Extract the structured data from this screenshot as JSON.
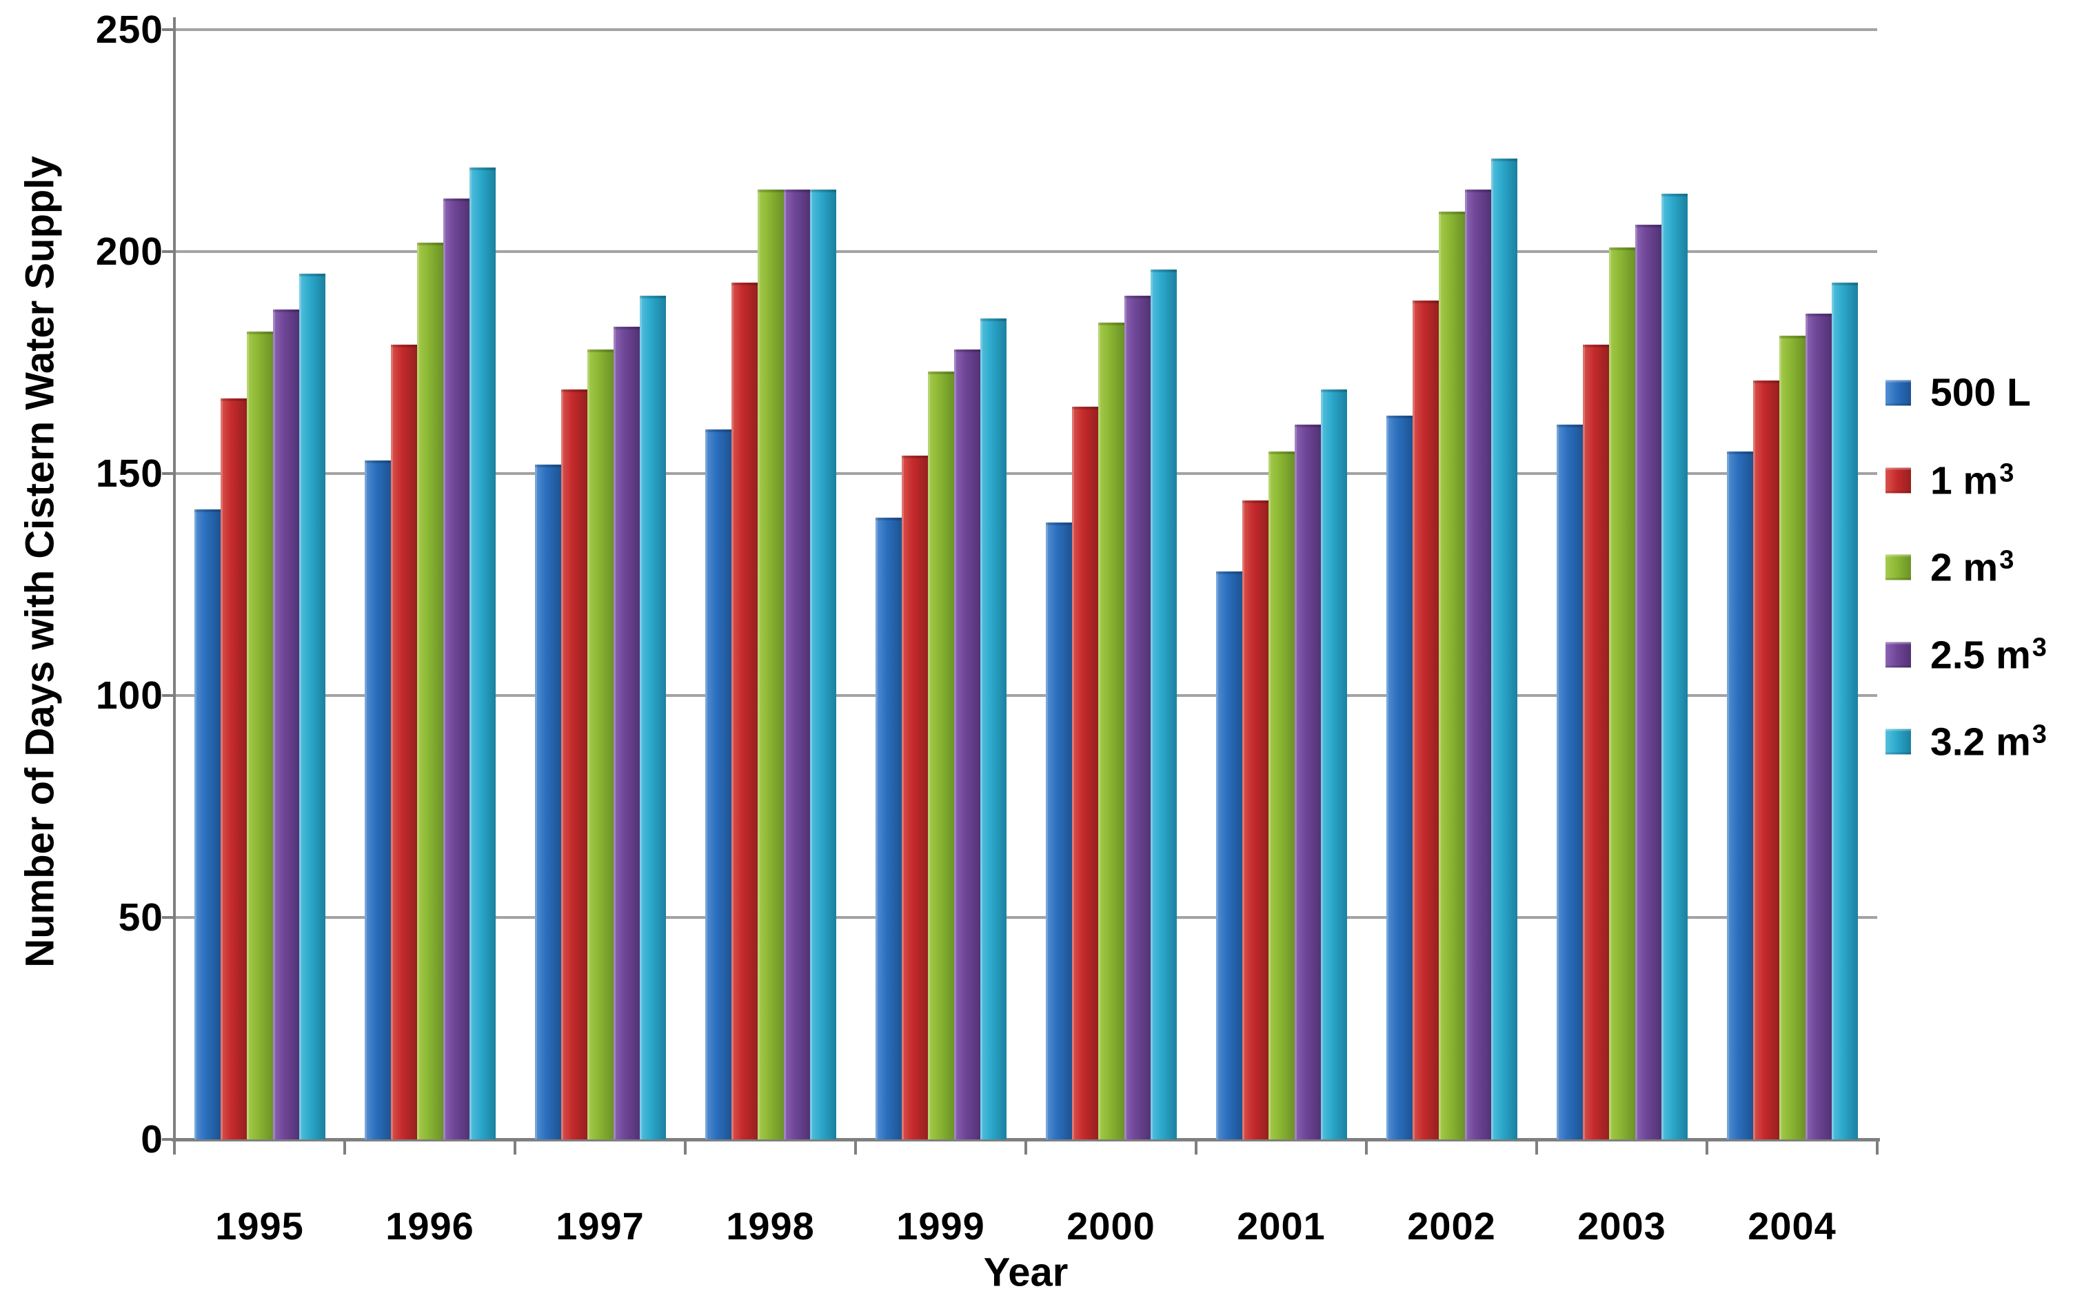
{
  "chart_data": {
    "type": "bar",
    "title": "",
    "xlabel": "Year",
    "ylabel": "Number of Days with Cistern Water Supply",
    "categories": [
      "1995",
      "1996",
      "1997",
      "1998",
      "1999",
      "2000",
      "2001",
      "2002",
      "2003",
      "2004"
    ],
    "series": [
      {
        "name": "500 L",
        "sup": "",
        "color": "#2B6FBE",
        "color_light": "#5590D2",
        "color_dark": "#1D5392",
        "values": [
          142,
          153,
          152,
          160,
          140,
          139,
          128,
          163,
          161,
          155
        ]
      },
      {
        "name": "1 m",
        "sup": "3",
        "color": "#C52A2C",
        "color_light": "#D9534C",
        "color_dark": "#96201F",
        "values": [
          167,
          179,
          169,
          193,
          154,
          165,
          144,
          189,
          179,
          171
        ]
      },
      {
        "name": "2 m",
        "sup": "3",
        "color": "#8CB733",
        "color_light": "#A6CB4D",
        "color_dark": "#6B9226",
        "values": [
          182,
          202,
          178,
          214,
          173,
          184,
          155,
          209,
          201,
          181
        ]
      },
      {
        "name": "2.5 m",
        "sup": "3",
        "color": "#6F4697",
        "color_light": "#8C64B4",
        "color_dark": "#523274",
        "values": [
          187,
          212,
          183,
          214,
          178,
          190,
          161,
          214,
          206,
          186
        ]
      },
      {
        "name": "3.2 m",
        "sup": "3",
        "color": "#2BA8CB",
        "color_light": "#55C0DE",
        "color_dark": "#1C80A0",
        "values": [
          195,
          219,
          190,
          214,
          185,
          196,
          169,
          221,
          213,
          193
        ]
      }
    ],
    "y_axis": {
      "min": 0,
      "max": 250,
      "step": 50,
      "tick_labels": [
        "0",
        "50",
        "100",
        "150",
        "200",
        "250"
      ]
    },
    "grid": true,
    "legend_position": "right"
  },
  "colors": {
    "background": "#FFFFFF",
    "gridline": "#A3A3A3",
    "axis": "#7F7F7F",
    "text": "#000000"
  }
}
